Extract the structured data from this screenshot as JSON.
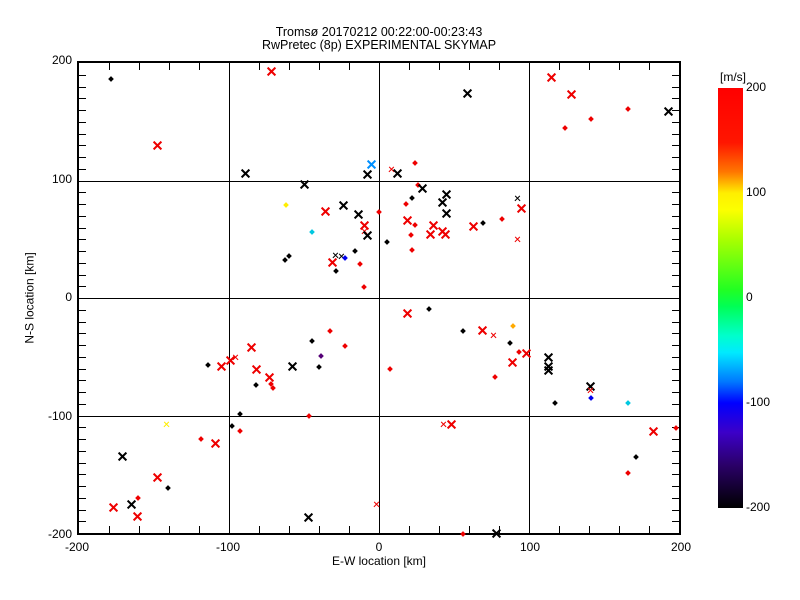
{
  "title": {
    "line1": "Tromsø 20170212 00:22:00-00:23:43",
    "line2": "RwPretec (8p) EXPERIMENTAL SKYMAP"
  },
  "axes": {
    "xlabel": "E-W location [km]",
    "ylabel": "N-S location [km]",
    "xticks": [
      "-200",
      "-100",
      "0",
      "100",
      "200"
    ],
    "yticks": [
      "200",
      "100",
      "0",
      "-100",
      "-200"
    ],
    "xlim": [
      -200,
      200
    ],
    "ylim": [
      -200,
      200
    ],
    "grid_values": [
      -100,
      0,
      100
    ],
    "x_minor_step": 20,
    "y_minor_step": 10
  },
  "colorbar": {
    "label": "[m/s]",
    "ticks": [
      "200",
      "100",
      "0",
      "-100",
      "-200"
    ],
    "min": -200,
    "max": 200
  },
  "chart_data": {
    "type": "scatter",
    "title": "Tromsø 20170212 00:22:00-00:23:43 / RwPretec (8p) EXPERIMENTAL SKYMAP",
    "xlabel": "E-W location [km]",
    "ylabel": "N-S location [km]",
    "xlim": [
      -200,
      200
    ],
    "ylim": [
      -200,
      200
    ],
    "grid": true,
    "legend": "colorbar right, velocity m/s from -200 (black) to 200 (red)",
    "marker_types": {
      "x": "large cross",
      "s": "small cross",
      "d": "small dot"
    },
    "colors": {
      "r": "#ee0000",
      "k": "#000000",
      "y": "#ffee00",
      "o": "#ffaa00",
      "c": "#00c8e0",
      "b": "#0000ee",
      "lb": "#0090ff",
      "p": "#550077"
    },
    "points": [
      [
        -179,
        186,
        "k",
        "d"
      ],
      [
        -72,
        193,
        "r",
        "x"
      ],
      [
        -148,
        130,
        "r",
        "x"
      ],
      [
        -89,
        106,
        "k",
        "x"
      ],
      [
        -50,
        97,
        "k",
        "x"
      ],
      [
        -62,
        79,
        "y",
        "d"
      ],
      [
        -36,
        74,
        "r",
        "x"
      ],
      [
        -24,
        79,
        "k",
        "x"
      ],
      [
        -14,
        71,
        "k",
        "x"
      ],
      [
        -45,
        56,
        "c",
        "d"
      ],
      [
        -10,
        62,
        "r",
        "x"
      ],
      [
        -10,
        57,
        "r",
        "s"
      ],
      [
        -8,
        53,
        "k",
        "x"
      ],
      [
        -60,
        36,
        "k",
        "d"
      ],
      [
        -63,
        32,
        "k",
        "d"
      ],
      [
        -29,
        36,
        "k",
        "s"
      ],
      [
        -25,
        35,
        "k",
        "s"
      ],
      [
        -31,
        30,
        "r",
        "x"
      ],
      [
        -23,
        34,
        "b",
        "d"
      ],
      [
        -16,
        40,
        "k",
        "d"
      ],
      [
        -13,
        29,
        "r",
        "d"
      ],
      [
        -29,
        23,
        "k",
        "d"
      ],
      [
        -10,
        9,
        "r",
        "d"
      ],
      [
        -5,
        114,
        "lb",
        "x"
      ],
      [
        -8,
        105,
        "k",
        "x"
      ],
      [
        8,
        109,
        "r",
        "s"
      ],
      [
        12,
        106,
        "k",
        "x"
      ],
      [
        24,
        115,
        "r",
        "d"
      ],
      [
        26,
        96,
        "r",
        "d"
      ],
      [
        29,
        93,
        "k",
        "x"
      ],
      [
        22,
        85,
        "k",
        "d"
      ],
      [
        18,
        80,
        "r",
        "d"
      ],
      [
        45,
        88,
        "k",
        "x"
      ],
      [
        42,
        81,
        "k",
        "x"
      ],
      [
        45,
        72,
        "k",
        "x"
      ],
      [
        0,
        73,
        "r",
        "d"
      ],
      [
        5,
        48,
        "k",
        "d"
      ],
      [
        19,
        66,
        "r",
        "x"
      ],
      [
        24,
        62,
        "r",
        "d"
      ],
      [
        36,
        62,
        "r",
        "x"
      ],
      [
        42,
        57,
        "r",
        "x"
      ],
      [
        34,
        54,
        "r",
        "x"
      ],
      [
        44,
        54,
        "r",
        "x"
      ],
      [
        21,
        54,
        "r",
        "d"
      ],
      [
        22,
        41,
        "r",
        "d"
      ],
      [
        63,
        61,
        "r",
        "x"
      ],
      [
        69,
        64,
        "k",
        "d"
      ],
      [
        59,
        174,
        "k",
        "x"
      ],
      [
        115,
        188,
        "r",
        "x"
      ],
      [
        128,
        173,
        "r",
        "x"
      ],
      [
        166,
        161,
        "r",
        "d"
      ],
      [
        141,
        152,
        "r",
        "d"
      ],
      [
        124,
        145,
        "r",
        "d"
      ],
      [
        193,
        159,
        "k",
        "x"
      ],
      [
        92,
        85,
        "k",
        "s"
      ],
      [
        95,
        76,
        "r",
        "x"
      ],
      [
        82,
        67,
        "r",
        "d"
      ],
      [
        92,
        50,
        "r",
        "s"
      ],
      [
        19,
        -13,
        "r",
        "x"
      ],
      [
        33,
        -9,
        "k",
        "d"
      ],
      [
        7,
        -60,
        "r",
        "d"
      ],
      [
        56,
        -28,
        "k",
        "d"
      ],
      [
        69,
        -28,
        "r",
        "x"
      ],
      [
        76,
        -32,
        "r",
        "s"
      ],
      [
        89,
        -24,
        "o",
        "d"
      ],
      [
        87,
        -38,
        "k",
        "d"
      ],
      [
        93,
        -46,
        "r",
        "d"
      ],
      [
        98,
        -47,
        "r",
        "x"
      ],
      [
        89,
        -55,
        "r",
        "x"
      ],
      [
        77,
        -67,
        "r",
        "d"
      ],
      [
        113,
        -51,
        "k",
        "x"
      ],
      [
        113,
        -58,
        "k",
        "x"
      ],
      [
        113,
        -62,
        "k",
        "x"
      ],
      [
        141,
        -75,
        "k",
        "x"
      ],
      [
        141,
        -79,
        "r",
        "s"
      ],
      [
        141,
        -85,
        "b",
        "d"
      ],
      [
        117,
        -89,
        "k",
        "d"
      ],
      [
        166,
        -89,
        "c",
        "d"
      ],
      [
        43,
        -108,
        "r",
        "s"
      ],
      [
        48,
        -108,
        "r",
        "x"
      ],
      [
        183,
        -114,
        "r",
        "x"
      ],
      [
        198,
        -111,
        "r",
        "d"
      ],
      [
        171,
        -135,
        "k",
        "d"
      ],
      [
        166,
        -149,
        "r",
        "d"
      ],
      [
        78,
        -200,
        "k",
        "x"
      ],
      [
        56,
        -201,
        "r",
        "d"
      ],
      [
        -45,
        -37,
        "k",
        "d"
      ],
      [
        -33,
        -28,
        "r",
        "d"
      ],
      [
        -23,
        -41,
        "r",
        "d"
      ],
      [
        -39,
        -49,
        "p",
        "d"
      ],
      [
        -40,
        -59,
        "k",
        "d"
      ],
      [
        -114,
        -57,
        "k",
        "d"
      ],
      [
        -105,
        -58,
        "r",
        "x"
      ],
      [
        -99,
        -53,
        "r",
        "x"
      ],
      [
        -96,
        -51,
        "r",
        "s"
      ],
      [
        -85,
        -42,
        "r",
        "x"
      ],
      [
        -82,
        -61,
        "r",
        "x"
      ],
      [
        -73,
        -68,
        "r",
        "x"
      ],
      [
        -82,
        -74,
        "k",
        "d"
      ],
      [
        -72,
        -73,
        "r",
        "d"
      ],
      [
        -71,
        -77,
        "r",
        "d"
      ],
      [
        -58,
        -58,
        "k",
        "x"
      ],
      [
        -93,
        -99,
        "k",
        "d"
      ],
      [
        -47,
        -100,
        "r",
        "d"
      ],
      [
        -142,
        -108,
        "y",
        "s"
      ],
      [
        -98,
        -109,
        "k",
        "d"
      ],
      [
        -93,
        -113,
        "r",
        "d"
      ],
      [
        -119,
        -120,
        "r",
        "d"
      ],
      [
        -109,
        -124,
        "r",
        "x"
      ],
      [
        -171,
        -135,
        "k",
        "x"
      ],
      [
        -148,
        -153,
        "r",
        "x"
      ],
      [
        -141,
        -162,
        "k",
        "d"
      ],
      [
        -177,
        -178,
        "r",
        "x"
      ],
      [
        -165,
        -176,
        "k",
        "x"
      ],
      [
        -161,
        -170,
        "r",
        "d"
      ],
      [
        -161,
        -186,
        "r",
        "x"
      ],
      [
        -47,
        -187,
        "k",
        "x"
      ],
      [
        -2,
        -176,
        "r",
        "s"
      ]
    ]
  }
}
